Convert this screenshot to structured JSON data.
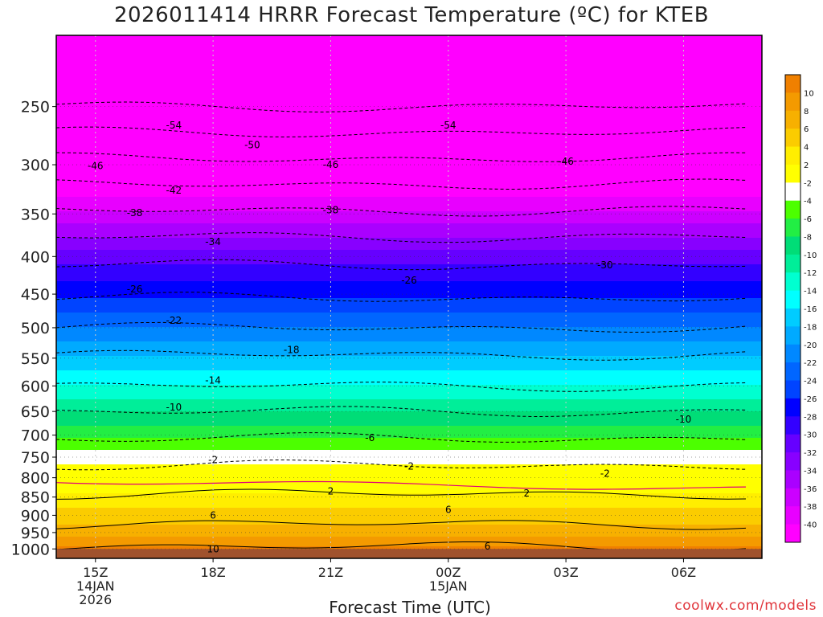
{
  "title": "2026011414 HRRR Forecast Temperature (ºC) for KTEB",
  "xlabel": "Forecast Time (UTC)",
  "credit": "coolwx.com/models",
  "chart_data": {
    "type": "heatmap",
    "title": "2026011414 HRRR Forecast Temperature (ºC) for KTEB",
    "xlabel": "Forecast Time (UTC)",
    "ylabel": "",
    "x_ticks": [
      {
        "hour": 15,
        "lines": [
          "15Z",
          "14JAN",
          "2026"
        ]
      },
      {
        "hour": 18,
        "lines": [
          "18Z"
        ]
      },
      {
        "hour": 21,
        "lines": [
          "21Z"
        ]
      },
      {
        "hour": 24,
        "lines": [
          "00Z",
          "15JAN"
        ]
      },
      {
        "hour": 27,
        "lines": [
          "03Z"
        ]
      },
      {
        "hour": 30,
        "lines": [
          "06Z"
        ]
      }
    ],
    "xlim_hours": [
      14,
      32
    ],
    "y_axis_scale": "log-pressure",
    "ylim_hpa": [
      1030,
      200
    ],
    "y_ticks": [
      250,
      300,
      350,
      400,
      450,
      500,
      550,
      600,
      650,
      700,
      750,
      800,
      850,
      900,
      950,
      1000
    ],
    "surface_pressure_hpa": 1000,
    "surface_color": "#a0522d",
    "colorbar_levels": [
      10,
      8,
      6,
      4,
      2,
      -2,
      -4,
      -6,
      -8,
      -10,
      -12,
      -14,
      -16,
      -18,
      -20,
      -22,
      -24,
      -26,
      -28,
      -30,
      -32,
      -34,
      -36,
      -38,
      -40
    ],
    "colorbar_colors": [
      "#f08000",
      "#f49a00",
      "#f7b000",
      "#fbcc00",
      "#ffee00",
      "#ffff00",
      "#ffffff",
      "#4cff00",
      "#22ee44",
      "#00dd77",
      "#00ee99",
      "#00ffd0",
      "#00ffff",
      "#00ccff",
      "#00aaff",
      "#0088ff",
      "#0066ff",
      "#0044ff",
      "#0000ff",
      "#3300ff",
      "#6600ff",
      "#8800ff",
      "#aa00ff",
      "#cc00ff",
      "#e800ff",
      "#ff00ff"
    ],
    "temperature_profile": [
      {
        "p": 1000,
        "t": 10.5
      },
      {
        "p": 950,
        "t": 7.0
      },
      {
        "p": 900,
        "t": 5.0
      },
      {
        "p": 850,
        "t": 2.5
      },
      {
        "p": 800,
        "t": -0.5
      },
      {
        "p": 750,
        "t": -3.0
      },
      {
        "p": 700,
        "t": -6.5
      },
      {
        "p": 650,
        "t": -10.0
      },
      {
        "p": 600,
        "t": -14.0
      },
      {
        "p": 550,
        "t": -17.5
      },
      {
        "p": 500,
        "t": -22.0
      },
      {
        "p": 450,
        "t": -26.5
      },
      {
        "p": 400,
        "t": -31.0
      },
      {
        "p": 350,
        "t": -37.5
      },
      {
        "p": 300,
        "t": -45.0
      },
      {
        "p": 250,
        "t": -54.0
      },
      {
        "p": 200,
        "t": -57.0
      }
    ],
    "contour_labels": [
      {
        "text": "-54",
        "hour": 17.0,
        "p": 265
      },
      {
        "text": "-54",
        "hour": 24.0,
        "p": 265
      },
      {
        "text": "-50",
        "hour": 19.0,
        "p": 282
      },
      {
        "text": "-46",
        "hour": 15.0,
        "p": 301
      },
      {
        "text": "-46",
        "hour": 21.0,
        "p": 300
      },
      {
        "text": "-46",
        "hour": 27.0,
        "p": 297
      },
      {
        "text": "-42",
        "hour": 17.0,
        "p": 325
      },
      {
        "text": "-38",
        "hour": 16.0,
        "p": 349
      },
      {
        "text": "-38",
        "hour": 21.0,
        "p": 346
      },
      {
        "text": "-34",
        "hour": 18.0,
        "p": 382
      },
      {
        "text": "-30",
        "hour": 28.0,
        "p": 411
      },
      {
        "text": "-26",
        "hour": 16.0,
        "p": 443
      },
      {
        "text": "-26",
        "hour": 23.0,
        "p": 431
      },
      {
        "text": "-22",
        "hour": 17.0,
        "p": 489
      },
      {
        "text": "-18",
        "hour": 20.0,
        "p": 536
      },
      {
        "text": "-14",
        "hour": 18.0,
        "p": 590
      },
      {
        "text": "-10",
        "hour": 17.0,
        "p": 642
      },
      {
        "text": "-10",
        "hour": 30.0,
        "p": 666
      },
      {
        "text": "-6",
        "hour": 22.0,
        "p": 706
      },
      {
        "text": "-2",
        "hour": 18.0,
        "p": 757
      },
      {
        "text": "-2",
        "hour": 23.0,
        "p": 772
      },
      {
        "text": "-2",
        "hour": 28.0,
        "p": 790
      },
      {
        "text": "2",
        "hour": 21.0,
        "p": 835
      },
      {
        "text": "2",
        "hour": 26.0,
        "p": 840
      },
      {
        "text": "6",
        "hour": 18.0,
        "p": 900
      },
      {
        "text": "6",
        "hour": 24.0,
        "p": 885
      },
      {
        "text": "6",
        "hour": 25.0,
        "p": 992
      },
      {
        "text": "10",
        "hour": 18.0,
        "p": 1000
      }
    ]
  }
}
